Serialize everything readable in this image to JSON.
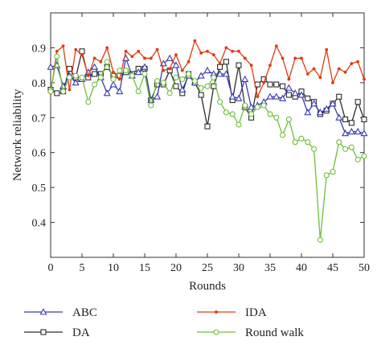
{
  "chart_data": {
    "type": "line",
    "xlabel": "Rounds",
    "ylabel": "Network reliability",
    "xlim": [
      0,
      50
    ],
    "ylim": [
      0.3,
      1.0
    ],
    "xticks": [
      "0",
      "5",
      "10",
      "15",
      "20",
      "25",
      "30",
      "35",
      "40",
      "45",
      "50"
    ],
    "yticks": [
      "0.4",
      "0.5",
      "0.6",
      "0.7",
      "0.8",
      "0.9"
    ],
    "grid": false,
    "legend_position": "bottom",
    "x": [
      0,
      1,
      2,
      3,
      4,
      5,
      6,
      7,
      8,
      9,
      10,
      11,
      12,
      13,
      14,
      15,
      16,
      17,
      18,
      19,
      20,
      21,
      22,
      23,
      24,
      25,
      26,
      27,
      28,
      29,
      30,
      31,
      32,
      33,
      34,
      35,
      36,
      37,
      38,
      39,
      40,
      41,
      42,
      43,
      44,
      45,
      46,
      47,
      48,
      49,
      50
    ],
    "series": [
      {
        "name": "ABC",
        "color": "#3a3ab0",
        "marker": "triangle",
        "values": [
          0.845,
          0.85,
          0.79,
          0.82,
          0.8,
          0.81,
          0.83,
          0.845,
          0.815,
          0.77,
          0.795,
          0.775,
          0.87,
          0.82,
          0.83,
          0.845,
          0.75,
          0.76,
          0.855,
          0.87,
          0.85,
          0.78,
          0.82,
          0.8,
          0.82,
          0.835,
          0.825,
          0.825,
          0.825,
          0.76,
          0.755,
          0.81,
          0.73,
          0.735,
          0.745,
          0.76,
          0.76,
          0.755,
          0.785,
          0.77,
          0.765,
          0.715,
          0.74,
          0.715,
          0.725,
          0.74,
          0.7,
          0.655,
          0.66,
          0.66,
          0.655
        ]
      },
      {
        "name": "IDA",
        "color": "#e23a12",
        "marker": "dot",
        "values": [
          0.77,
          0.89,
          0.905,
          0.78,
          0.895,
          0.88,
          0.82,
          0.87,
          0.86,
          0.9,
          0.83,
          0.81,
          0.89,
          0.875,
          0.89,
          0.87,
          0.87,
          0.895,
          0.835,
          0.84,
          0.88,
          0.835,
          0.86,
          0.92,
          0.885,
          0.89,
          0.88,
          0.855,
          0.9,
          0.89,
          0.89,
          0.87,
          0.85,
          0.76,
          0.8,
          0.85,
          0.905,
          0.87,
          0.81,
          0.87,
          0.87,
          0.825,
          0.84,
          0.815,
          0.895,
          0.8,
          0.84,
          0.83,
          0.855,
          0.86,
          0.81
        ]
      },
      {
        "name": "DA",
        "color": "#2c2c2c",
        "marker": "square",
        "values": [
          0.78,
          0.77,
          0.775,
          0.84,
          0.815,
          0.89,
          0.815,
          0.825,
          0.825,
          0.845,
          0.82,
          0.82,
          0.83,
          0.825,
          0.84,
          0.84,
          0.75,
          0.795,
          0.795,
          0.835,
          0.79,
          0.77,
          0.825,
          0.8,
          0.765,
          0.675,
          0.79,
          0.845,
          0.86,
          0.75,
          0.85,
          0.73,
          0.7,
          0.795,
          0.81,
          0.795,
          0.795,
          0.79,
          0.765,
          0.76,
          0.775,
          0.755,
          0.745,
          0.71,
          0.72,
          0.74,
          0.76,
          0.695,
          0.685,
          0.745,
          0.695
        ]
      },
      {
        "name": "Round walk",
        "color": "#6fbf3a",
        "marker": "circle",
        "values": [
          0.775,
          0.875,
          0.775,
          0.815,
          0.82,
          0.815,
          0.745,
          0.795,
          0.815,
          0.86,
          0.81,
          0.835,
          0.835,
          0.82,
          0.775,
          0.825,
          0.735,
          0.805,
          0.8,
          0.77,
          0.815,
          0.81,
          0.825,
          0.805,
          0.785,
          0.79,
          0.815,
          0.745,
          0.715,
          0.71,
          0.68,
          0.735,
          0.71,
          0.73,
          0.735,
          0.71,
          0.7,
          0.65,
          0.695,
          0.63,
          0.64,
          0.63,
          0.61,
          0.35,
          0.535,
          0.545,
          0.63,
          0.61,
          0.615,
          0.58,
          0.59
        ]
      }
    ]
  }
}
